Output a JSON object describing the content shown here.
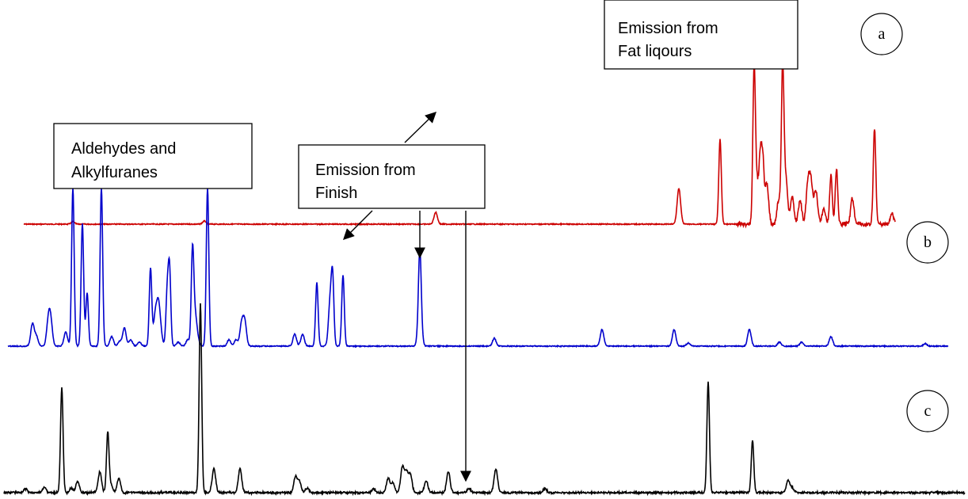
{
  "chart_data": {
    "type": "line",
    "title": "",
    "xlabel": "",
    "ylabel": "",
    "grid": false,
    "series": [
      {
        "id": "a",
        "color": "#cc0000",
        "baseline_offset": 0
      },
      {
        "id": "b",
        "color": "#0000cc",
        "baseline_offset": 0
      },
      {
        "id": "c",
        "color": "#000000",
        "baseline_offset": 0
      }
    ],
    "panel_labels": [
      "a",
      "b",
      "c"
    ],
    "annotations": [
      {
        "id": "fat",
        "lines": [
          "Emission from",
          "Fat liqours"
        ]
      },
      {
        "id": "aldehydes",
        "lines": [
          "Aldehydes and",
          "Alkylfuranes"
        ]
      },
      {
        "id": "finish",
        "lines": [
          "Emission from",
          "Finish"
        ]
      }
    ]
  }
}
